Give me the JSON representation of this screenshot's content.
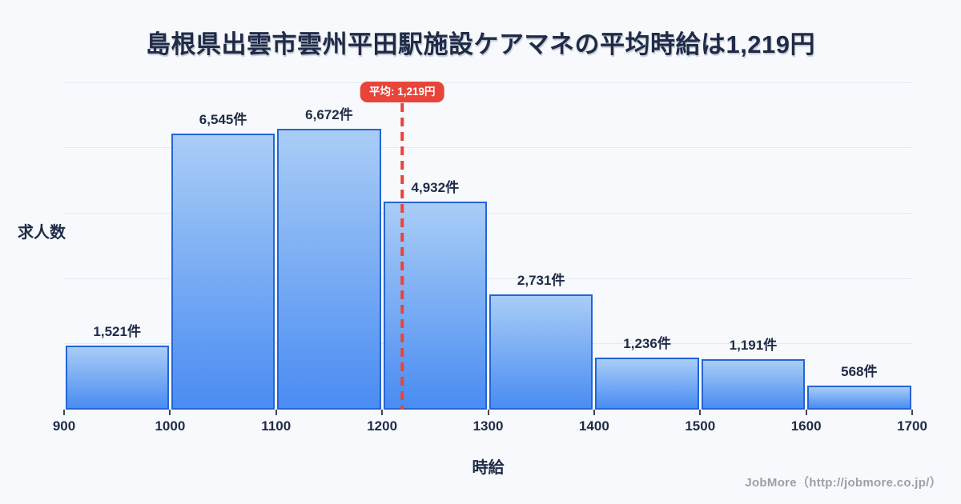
{
  "title": "島根県出雲市雲州平田駅施設ケアマネの平均時給は1,219円",
  "chart_data": {
    "type": "bar",
    "title": "島根県出雲市雲州平田駅施設ケアマネの平均時給は1,219円",
    "xlabel": "時給",
    "ylabel": "求人数",
    "bin_edges": [
      900,
      1000,
      1100,
      1200,
      1300,
      1400,
      1500,
      1600,
      1700
    ],
    "categories": [
      "900-1000",
      "1000-1100",
      "1100-1200",
      "1200-1300",
      "1300-1400",
      "1400-1500",
      "1500-1600",
      "1600-1700"
    ],
    "values": [
      1521,
      6545,
      6672,
      4932,
      2731,
      1236,
      1191,
      568
    ],
    "value_labels": [
      "1,521件",
      "6,545件",
      "6,672件",
      "4,932件",
      "2,731件",
      "1,236件",
      "1,191件",
      "568件"
    ],
    "x_tick_labels": [
      "900",
      "1000",
      "1100",
      "1200",
      "1300",
      "1400",
      "1500",
      "1600",
      "1700"
    ],
    "xlim": [
      900,
      1700
    ],
    "ylim": [
      0,
      7825
    ],
    "grid": true,
    "legend": null,
    "average": {
      "value": 1219,
      "label": "平均: 1,219円"
    }
  },
  "footer": {
    "credit": "JobMore（http://jobmore.co.jp/）"
  },
  "colors": {
    "background": "#f7f9fc",
    "ink": "#1f2b47",
    "grid": "#e4e9f1",
    "bar_fill_top": "#a9cdf6",
    "bar_fill_bottom": "#4a8cf2",
    "bar_border": "#2465d6",
    "accent_red": "#e8443a",
    "badge_text": "#ffffff",
    "footer_text": "#9aa0a6"
  }
}
